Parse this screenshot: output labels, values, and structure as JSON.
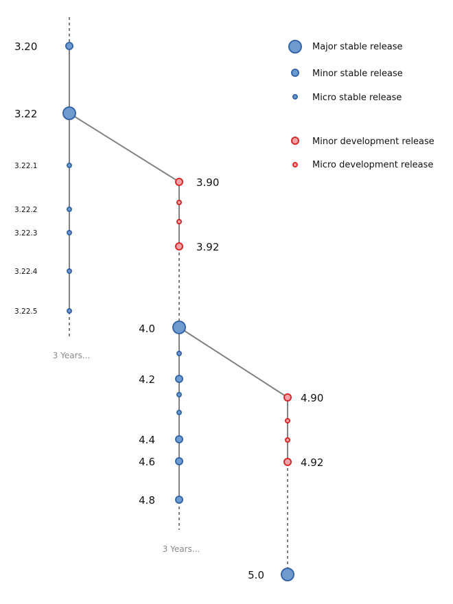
{
  "colors": {
    "stable_fill": "#6f9bd1",
    "stable_stroke": "#3566a8",
    "dev_fill": "#f4a3a8",
    "dev_stroke": "#d42a2a",
    "line": "#808080"
  },
  "branches": {
    "b3": {
      "labels": [
        "3.20",
        "3.22",
        "3.22.1",
        "3.22.2",
        "3.22.3",
        "3.22.4",
        "3.22.5"
      ],
      "gap": "3 Years..."
    },
    "b39": {
      "labels": [
        "3.90",
        "3.92"
      ]
    },
    "b4": {
      "labels": [
        "4.0",
        "4.2",
        "4.4",
        "4.6",
        "4.8"
      ],
      "gap": "3 Years..."
    },
    "b49": {
      "labels": [
        "4.90",
        "4.92"
      ]
    },
    "b5": {
      "labels": [
        "5.0"
      ]
    }
  },
  "legend": [
    {
      "label": "Major stable release",
      "kind": "stable",
      "size": "major"
    },
    {
      "label": "Minor stable release",
      "kind": "stable",
      "size": "minor"
    },
    {
      "label": "Micro stable release",
      "kind": "stable",
      "size": "micro"
    },
    {
      "label": "Minor development release",
      "kind": "dev",
      "size": "minor"
    },
    {
      "label": "Micro development release",
      "kind": "dev",
      "size": "micro"
    }
  ]
}
